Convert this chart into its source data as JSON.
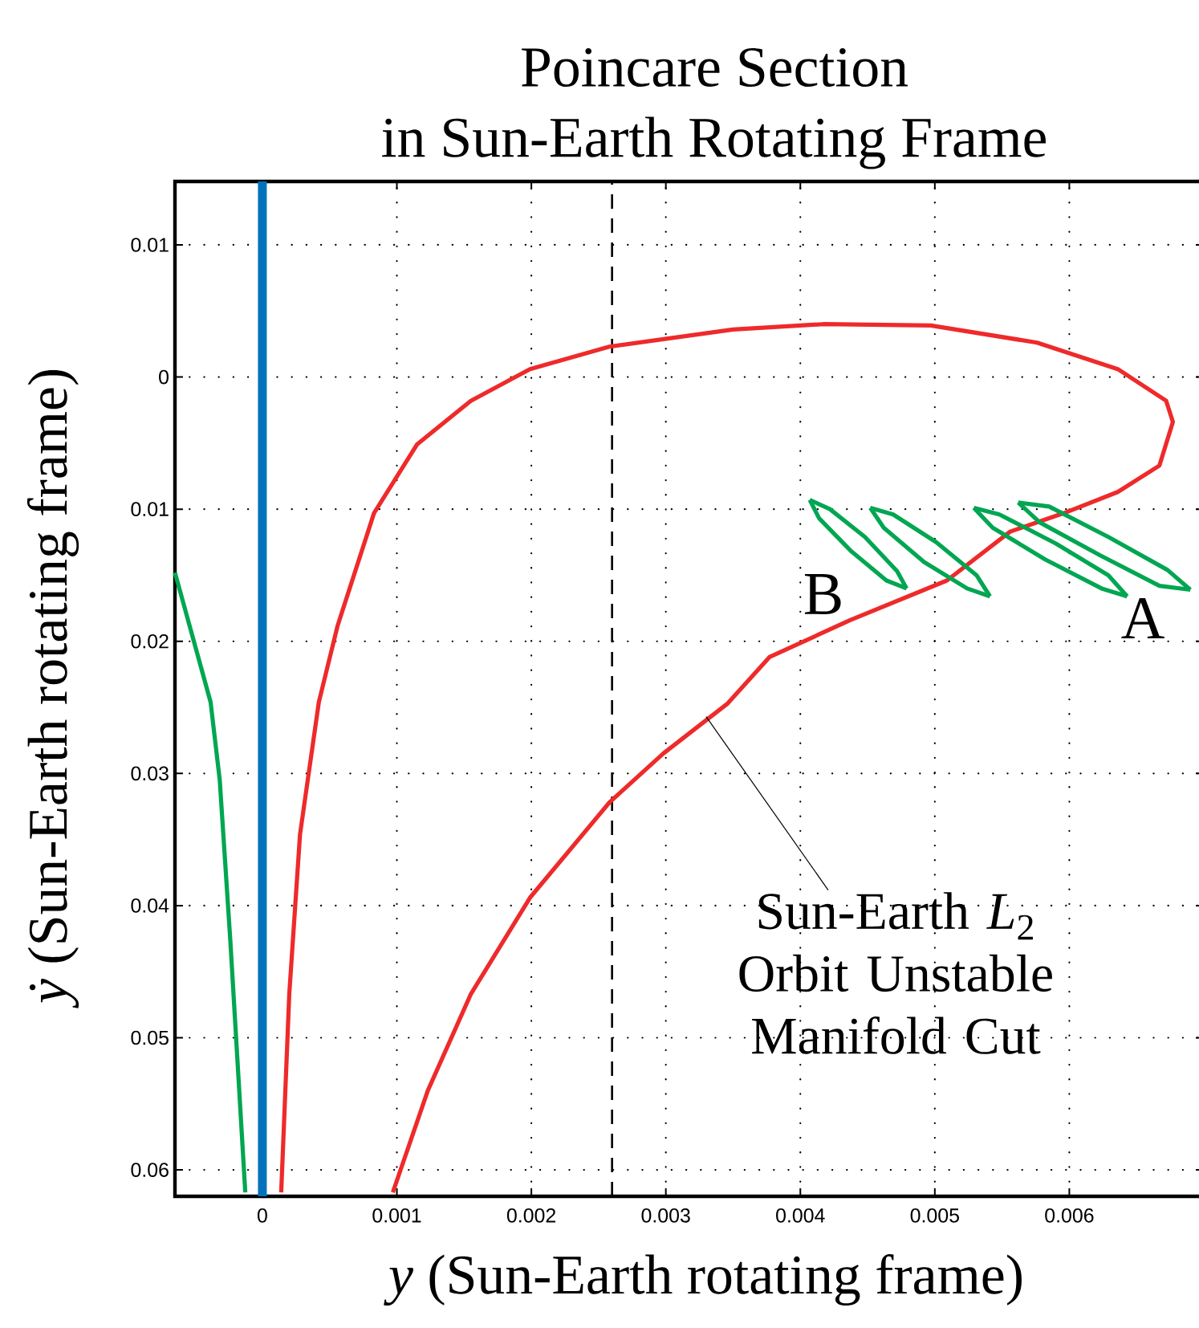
{
  "chart_data": {
    "type": "line",
    "title": "Poincare Section",
    "subtitle": "in Sun-Earth Rotating Frame",
    "xlabel": "*y* (Sun-Earth rotating frame)",
    "ylabel": "*ẏ* (Sun-Earth rotating frame)",
    "xlim": [
      -0.00065,
      0.007
    ],
    "ylim": [
      -0.062,
      0.0148
    ],
    "xticks": [
      0,
      0.001,
      0.002,
      0.003,
      0.004,
      0.005,
      0.006
    ],
    "yticks": [
      {
        "value": -0.06,
        "label": "0.06"
      },
      {
        "value": -0.05,
        "label": "0.05"
      },
      {
        "value": -0.04,
        "label": "0.04"
      },
      {
        "value": -0.03,
        "label": "0.03"
      },
      {
        "value": -0.02,
        "label": "0.02"
      },
      {
        "value": -0.01,
        "label": "0.01"
      },
      0,
      0.01
    ],
    "grid": true,
    "line_style": "solid",
    "series": [
      {
        "color": "#00a651",
        "x": [
          -0.00065,
          -0.000385,
          -0.000317,
          -0.000238,
          -0.000127
        ],
        "values": [
          -0.0148,
          -0.0246,
          -0.0305,
          -0.0427,
          -0.0617
        ]
      },
      {
        "color": "#ee2a2a",
        "x": [
          0.00014,
          0.0002,
          0.00028,
          0.00042,
          0.00056,
          0.00083,
          0.00115,
          0.00155,
          0.00199,
          0.00258,
          0.0035,
          0.00417,
          0.00497,
          0.00576,
          0.00636,
          0.00672,
          0.00677,
          0.00667,
          0.00636,
          0.00596,
          0.00556,
          0.00509,
          0.00437,
          0.00377,
          0.00346,
          0.00298,
          0.00258,
          0.00199,
          0.00155,
          0.00123,
          0.00097
        ],
        "values": [
          -0.0617,
          -0.0467,
          -0.0346,
          -0.0246,
          -0.0188,
          -0.0103,
          -0.0051,
          -0.0018,
          0.0006,
          0.0023,
          0.0036,
          0.004,
          0.0039,
          0.0026,
          0.0006,
          -0.0018,
          -0.0034,
          -0.0067,
          -0.0087,
          -0.0103,
          -0.0117,
          -0.0154,
          -0.0184,
          -0.0212,
          -0.0247,
          -0.0285,
          -0.0322,
          -0.0394,
          -0.0467,
          -0.054,
          -0.0617
        ]
      },
      {
        "color": "#00a651",
        "x": [
          0.00407,
          0.00422,
          0.00448,
          0.00472,
          0.00479
        ],
        "values": [
          -0.0093,
          -0.01,
          -0.0121,
          -0.0147,
          -0.016
        ]
      },
      {
        "color": "#00a651",
        "x": [
          0.00407,
          0.00414,
          0.00438,
          0.00464,
          0.00479
        ],
        "values": [
          -0.0093,
          -0.0107,
          -0.0132,
          -0.0154,
          -0.016
        ]
      },
      {
        "color": "#00a651",
        "x": [
          0.00452,
          0.00469,
          0.00501,
          0.00531,
          0.00541
        ],
        "values": [
          -0.0099,
          -0.0104,
          -0.0125,
          -0.015,
          -0.0166
        ]
      },
      {
        "color": "#00a651",
        "x": [
          0.00452,
          0.00462,
          0.00492,
          0.00524,
          0.00541
        ],
        "values": [
          -0.0099,
          -0.0114,
          -0.014,
          -0.016,
          -0.0166
        ]
      },
      {
        "color": "#00a651",
        "x": [
          0.00529,
          0.00548,
          0.0059,
          0.00629,
          0.00643
        ],
        "values": [
          -0.0099,
          -0.0104,
          -0.0126,
          -0.015,
          -0.0166
        ]
      },
      {
        "color": "#00a651",
        "x": [
          0.00529,
          0.00543,
          0.00582,
          0.00624,
          0.00643
        ],
        "values": [
          -0.0099,
          -0.0114,
          -0.0138,
          -0.016,
          -0.0166
        ]
      },
      {
        "color": "#00a651",
        "x": [
          0.00562,
          0.00585,
          0.00629,
          0.00673,
          0.0069
        ],
        "values": [
          -0.0095,
          -0.0098,
          -0.0121,
          -0.0146,
          -0.0161
        ]
      },
      {
        "color": "#00a651",
        "x": [
          0.00562,
          0.00578,
          0.00623,
          0.00667,
          0.0069
        ],
        "values": [
          -0.0095,
          -0.011,
          -0.0135,
          -0.0158,
          -0.0161
        ]
      }
    ],
    "ref_lines": [
      {
        "axis": "x",
        "value": 0,
        "color": "#0072bc",
        "line_style": "solid"
      },
      {
        "axis": "x",
        "value": 0.0026,
        "color": "#000000",
        "line_style": "dashed"
      }
    ],
    "annotations": [
      "B",
      "A",
      {
        "text": "Sun-Earth *L*$_{2}$ Orbit Unstable Manifold Cut",
        "x": 0.0033,
        "y": -0.0257
      }
    ]
  }
}
